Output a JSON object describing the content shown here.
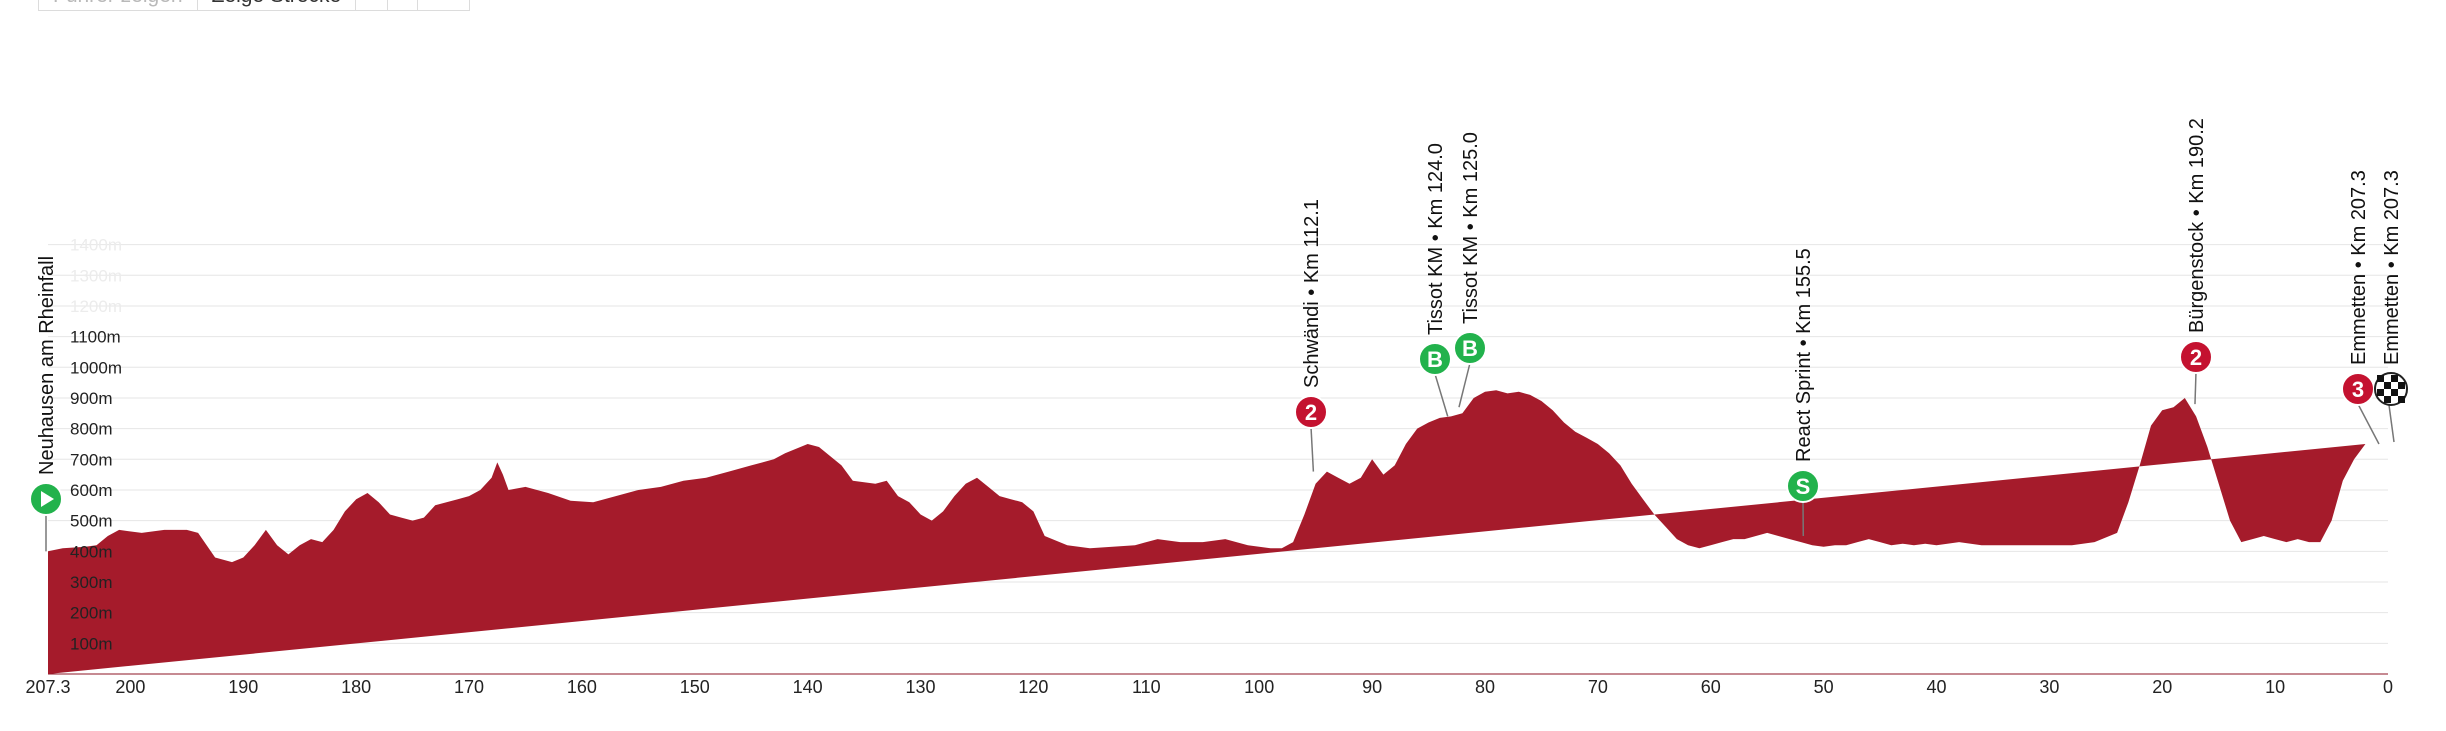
{
  "toolbar": {
    "show_leader_label": "Führer zeigen",
    "show_route_label": "Zeige Strecke",
    "button3_label": "",
    "button4_label": "",
    "button5_label": ""
  },
  "colors": {
    "profile_fill": "#a51b2b",
    "marker_mountain": "#c41230",
    "marker_green": "#22b24c",
    "grid": "#e6e6e6",
    "axis_text": "#222222"
  },
  "chart_data": {
    "type": "area",
    "title": "",
    "xlabel": "",
    "ylabel": "",
    "x_reversed": true,
    "xlim": [
      0,
      207.3
    ],
    "ylim": [
      0,
      1500
    ],
    "x_ticks": [
      "207.3",
      "200",
      "190",
      "180",
      "170",
      "160",
      "150",
      "140",
      "130",
      "120",
      "110",
      "100",
      "90",
      "80",
      "70",
      "60",
      "50",
      "40",
      "30",
      "20",
      "10",
      "0"
    ],
    "y_ticks": [
      "100m",
      "200m",
      "300m",
      "400m",
      "500m",
      "600m",
      "700m",
      "800m",
      "900m",
      "1000m",
      "1100m",
      "1200m",
      "1300m",
      "1400m"
    ],
    "grid": true,
    "series": [
      {
        "values_km_remaining": [
          207.3,
          206,
          204,
          203,
          202,
          201,
          199,
          197,
          195,
          194,
          192.5,
          191,
          190,
          189,
          188,
          187,
          186,
          185,
          184,
          183,
          182,
          181,
          180,
          179,
          178,
          177,
          176,
          175,
          174,
          173,
          172,
          171,
          170,
          169,
          168,
          167.5,
          167,
          166.5,
          165,
          163,
          161,
          159,
          157,
          155,
          153,
          151,
          149,
          147,
          145,
          143,
          142,
          140,
          139,
          137,
          136,
          134,
          133,
          132,
          131,
          130,
          129,
          128,
          127,
          126,
          125,
          124,
          123,
          122,
          121,
          120,
          119,
          117,
          115,
          113,
          111,
          109,
          107,
          105,
          103,
          101,
          99,
          98,
          97,
          96,
          95,
          94,
          93,
          92,
          91,
          90,
          89,
          88,
          87,
          86,
          85,
          84,
          83,
          82,
          81,
          80,
          79,
          78,
          77,
          76,
          75,
          74,
          73,
          72,
          71,
          70,
          69,
          68,
          67,
          66,
          65,
          64,
          63,
          62,
          61,
          60,
          59,
          58,
          57,
          56,
          55,
          54,
          53,
          52,
          51,
          50,
          49,
          48,
          47,
          46,
          45,
          44,
          43,
          42,
          41,
          40,
          38,
          36,
          34,
          32,
          30,
          28,
          26,
          24,
          23,
          22,
          21,
          20,
          19,
          18,
          17,
          16,
          15,
          14,
          13,
          12,
          11,
          10,
          9,
          8,
          7,
          6,
          5,
          4,
          3,
          2,
          1,
          0
        ],
        "elevation_m": [
          400,
          410,
          415,
          420,
          450,
          470,
          460,
          470,
          470,
          460,
          380,
          365,
          380,
          420,
          470,
          420,
          390,
          420,
          440,
          430,
          470,
          530,
          570,
          590,
          560,
          520,
          510,
          500,
          510,
          550,
          560,
          570,
          580,
          600,
          640,
          690,
          650,
          600,
          610,
          590,
          565,
          560,
          580,
          600,
          610,
          630,
          640,
          660,
          680,
          700,
          720,
          750,
          740,
          680,
          630,
          620,
          630,
          580,
          560,
          520,
          500,
          530,
          580,
          620,
          640,
          610,
          580,
          570,
          560,
          530,
          450,
          420,
          410,
          415,
          420,
          440,
          430,
          430,
          440,
          420,
          410,
          410,
          430,
          520,
          620,
          660,
          640,
          620,
          640,
          700,
          650,
          680,
          750,
          800,
          820,
          835,
          840,
          850,
          900,
          920,
          925,
          915,
          920,
          910,
          890,
          860,
          820,
          790,
          770,
          750,
          720,
          680,
          620,
          570,
          520,
          480,
          440,
          420,
          410,
          420,
          430,
          440,
          440,
          450,
          460,
          450,
          440,
          430,
          420,
          415,
          420,
          420,
          430,
          440,
          430,
          420,
          425,
          420,
          425,
          420,
          430,
          420,
          420,
          420,
          420,
          420,
          430,
          460,
          560,
          680,
          810,
          860,
          870,
          900,
          840,
          740,
          620,
          500,
          430,
          440,
          450,
          440,
          430,
          440,
          430,
          430,
          500,
          630,
          700,
          750
        ]
      }
    ],
    "markers": [
      {
        "text": "Neuhausen am Rheinfall",
        "km": 207.3,
        "elevation_m": 400,
        "icon": "start-play-icon"
      },
      {
        "text": "Schwändi • Km 112.1",
        "km": 95.2,
        "elevation_m": 660,
        "icon": "mountain-category-2-icon",
        "badge": "2"
      },
      {
        "text": "Tissot KM • Km 124.0",
        "km": 83.3,
        "elevation_m": 840,
        "icon": "bonus-sprint-icon",
        "badge": "B"
      },
      {
        "text": "Tissot KM • Km 125.0",
        "km": 82.3,
        "elevation_m": 870,
        "icon": "bonus-sprint-icon",
        "badge": "B"
      },
      {
        "text": "React Sprint • Km 155.5",
        "km": 51.8,
        "elevation_m": 450,
        "icon": "sprint-icon",
        "badge": "S"
      },
      {
        "text": "Bürgenstock • Km 190.2",
        "km": 17.1,
        "elevation_m": 880,
        "icon": "mountain-category-2-icon",
        "badge": "2"
      },
      {
        "text": "Emmetten • Km 207.3",
        "km": 0.8,
        "elevation_m": 750,
        "icon": "mountain-category-3-icon",
        "badge": "3"
      },
      {
        "text": "Emmetten • Km 207.3",
        "km": 0,
        "elevation_m": 750,
        "icon": "finish-flag-icon"
      }
    ]
  }
}
